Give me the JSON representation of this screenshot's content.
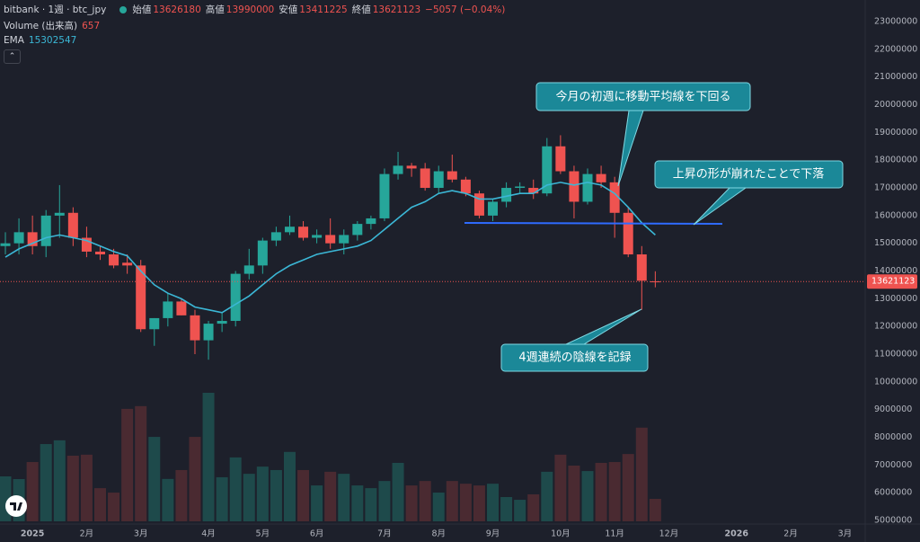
{
  "chart_data": {
    "type": "candlestick",
    "title": "bitbank · 1週 · btc_jpy",
    "ohlc_labels": [
      "始値",
      "高値",
      "安値",
      "終値"
    ],
    "change": "−5057 (−0.04%)",
    "volume_label": "Volume (出来高)",
    "ema_label": "EMA",
    "categories": [
      null,
      null,
      "2025",
      null,
      null,
      null,
      "2月",
      null,
      null,
      null,
      "3月",
      null,
      null,
      null,
      null,
      "4月",
      null,
      null,
      null,
      "5月",
      null,
      null,
      null,
      "6月",
      null,
      null,
      null,
      null,
      "7月",
      null,
      null,
      null,
      "8月",
      null,
      null,
      null,
      "9月",
      null,
      null,
      null,
      null,
      "10月",
      null,
      null,
      null,
      "11月",
      null,
      null,
      null,
      "12月",
      null,
      null,
      null,
      null,
      "2026",
      null,
      null,
      null,
      "2月",
      null,
      null,
      null,
      "3月"
    ],
    "open": [
      14900000,
      15000000,
      15400000,
      14900000,
      16000000,
      16100000,
      15200000,
      14700000,
      14600000,
      14300000,
      14200000,
      11900000,
      12300000,
      12900000,
      12400000,
      11500000,
      12100000,
      12200000,
      13900000,
      14200000,
      15100000,
      15400000,
      15600000,
      15200000,
      15300000,
      15000000,
      15300000,
      15700000,
      15900000,
      17500000,
      17800000,
      17700000,
      17000000,
      17600000,
      17300000,
      16800000,
      16000000,
      16500000,
      17000000,
      17000000,
      16800000,
      18500000,
      17600000,
      16500000,
      17500000,
      17200000,
      16100000,
      14600000,
      13626180,
      null,
      null,
      null,
      null,
      null,
      null,
      null,
      null,
      null,
      null,
      null,
      null,
      null,
      null
    ],
    "high": [
      15400000,
      15900000,
      16000000,
      16200000,
      17100000,
      16300000,
      15600000,
      14900000,
      14800000,
      14600000,
      14400000,
      12300000,
      13200000,
      13000000,
      12600000,
      12200000,
      12500000,
      14000000,
      14800000,
      15200000,
      15600000,
      16000000,
      15800000,
      15500000,
      15900000,
      15500000,
      15800000,
      16000000,
      17700000,
      18300000,
      17900000,
      17900000,
      17800000,
      18200000,
      17400000,
      16900000,
      16600000,
      17200000,
      17200000,
      17300000,
      18800000,
      18900000,
      17800000,
      17700000,
      17800000,
      17400000,
      16300000,
      14900000,
      13990000,
      null,
      null,
      null,
      null,
      null,
      null,
      null,
      null,
      null,
      null,
      null,
      null,
      null,
      null
    ],
    "low": [
      14600000,
      14600000,
      14600000,
      14500000,
      15200000,
      14900000,
      14500000,
      14400000,
      14100000,
      13900000,
      11800000,
      11300000,
      12000000,
      12400000,
      11000000,
      10800000,
      11800000,
      12000000,
      13700000,
      13900000,
      14900000,
      15300000,
      15100000,
      15000000,
      14800000,
      14600000,
      15100000,
      15500000,
      15800000,
      17300000,
      17400000,
      16900000,
      16800000,
      17200000,
      16700000,
      15900000,
      15800000,
      16300000,
      16800000,
      16600000,
      16700000,
      17500000,
      15900000,
      16400000,
      17000000,
      15200000,
      14500000,
      12600000,
      13411225,
      null,
      null,
      null,
      null,
      null,
      null,
      null,
      null,
      null,
      null,
      null,
      null,
      null,
      null
    ],
    "close": [
      15000000,
      15400000,
      14900000,
      16000000,
      16100000,
      15200000,
      14700000,
      14600000,
      14200000,
      14200000,
      11900000,
      12300000,
      12900000,
      12400000,
      11500000,
      12100000,
      12200000,
      13900000,
      14200000,
      15100000,
      15400000,
      15600000,
      15200000,
      15300000,
      15000000,
      15300000,
      15700000,
      15900000,
      17500000,
      17800000,
      17700000,
      17000000,
      17600000,
      17300000,
      16800000,
      16000000,
      16500000,
      17000000,
      17050000,
      16800000,
      18500000,
      17600000,
      16500000,
      17500000,
      17200000,
      16100000,
      14600000,
      13650000,
      13621123,
      null,
      null,
      null,
      null,
      null,
      null,
      null,
      null,
      null,
      null,
      null,
      null,
      null,
      null
    ],
    "volume": [
      1315,
      1236,
      1735,
      2260,
      2370,
      1920,
      1950,
      970,
      840,
      3290,
      3370,
      2470,
      1240,
      1500,
      2470,
      3760,
      1290,
      1870,
      1390,
      1600,
      1500,
      2030,
      1500,
      1050,
      1450,
      1390,
      1050,
      970,
      1180,
      1710,
      1050,
      1180,
      840,
      1180,
      1100,
      1050,
      1100,
      710,
      630,
      790,
      1450,
      1950,
      1630,
      1470,
      1710,
      1735,
      1970,
      2740,
      657,
      null,
      null,
      null,
      null,
      null,
      null,
      null,
      null,
      null,
      null,
      null,
      null,
      null,
      null
    ],
    "ema": [
      14500000,
      14800000,
      15000000,
      15200000,
      15300000,
      15200000,
      15100000,
      14900000,
      14700000,
      14550000,
      14000000,
      13500000,
      13200000,
      13000000,
      12700000,
      12600000,
      12500000,
      12800000,
      13100000,
      13500000,
      13900000,
      14200000,
      14400000,
      14600000,
      14700000,
      14800000,
      14900000,
      15100000,
      15500000,
      15900000,
      16300000,
      16500000,
      16800000,
      16900000,
      16800000,
      16600000,
      16600000,
      16700000,
      16800000,
      16800000,
      17100000,
      17200000,
      17100000,
      17200000,
      17100000,
      16800000,
      16300000,
      15740000,
      15302547,
      null,
      null,
      null,
      null,
      null,
      null,
      null,
      null,
      null,
      null,
      null,
      null,
      null,
      null
    ],
    "up_color": "#26a69a",
    "down_color": "#ef5350",
    "ema_color": "#3bb7d6",
    "up_volume_color": "#1e4a4b",
    "down_volume_color": "#4a2a31",
    "ylim": [
      4870000,
      23780000
    ],
    "yticks": [
      5000000,
      6000000,
      7000000,
      8000000,
      9000000,
      10000000,
      11000000,
      12000000,
      13000000,
      14000000,
      15000000,
      16000000,
      17000000,
      18000000,
      19000000,
      20000000,
      21000000,
      22000000,
      23000000
    ],
    "grid": false,
    "annotations": [
      "今月の初週に移動平均線を下回る",
      "上昇の形が崩れたことで下落",
      "4週連続の陰線を記録"
    ]
  }
}
